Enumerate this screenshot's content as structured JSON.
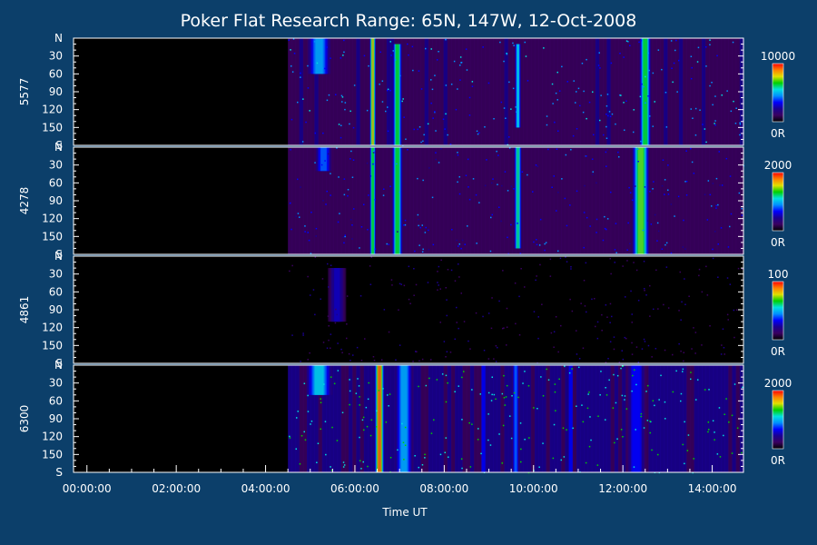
{
  "chart_data": {
    "type": "heatmap",
    "title": "Poker Flat Research Range: 65N, 147W, 12-Oct-2008",
    "xlabel": "Time UT",
    "x_tick_labels": [
      "00:00:00",
      "02:00:00",
      "04:00:00",
      "06:00:00",
      "08:00:00",
      "10:00:00",
      "12:00:00",
      "14:00:00"
    ],
    "x_tick_hours": [
      0,
      2,
      4,
      6,
      8,
      10,
      12,
      14
    ],
    "xlim_hours": [
      -0.3,
      14.7
    ],
    "data_start_hours": 4.5,
    "y_tick_labels": [
      "N",
      "30",
      "60",
      "90",
      "120",
      "150",
      "S"
    ],
    "y_tick_values": [
      0,
      30,
      60,
      90,
      120,
      150,
      180
    ],
    "ylim": [
      0,
      180
    ],
    "colorbar_colors": [
      "#000000",
      "#3a0060",
      "#1a0090",
      "#0000ff",
      "#0090ff",
      "#00e0e0",
      "#00d000",
      "#e0e000",
      "#ff8000",
      "#ff0000"
    ],
    "panels": [
      {
        "name": "5577",
        "cmax": 10000,
        "cmax_label": "10000",
        "cmin_label": "0R",
        "background": 0.13,
        "activity": [
          {
            "t": 5.2,
            "w": 0.45,
            "a": 0.55,
            "y0": 0,
            "y1": 60
          },
          {
            "t": 6.4,
            "w": 0.12,
            "a": 0.9,
            "y0": 0,
            "y1": 180
          },
          {
            "t": 6.95,
            "w": 0.18,
            "a": 0.75,
            "y0": 10,
            "y1": 180
          },
          {
            "t": 9.65,
            "w": 0.12,
            "a": 0.6,
            "y0": 10,
            "y1": 150
          },
          {
            "t": 12.5,
            "w": 0.22,
            "a": 0.75,
            "y0": 0,
            "y1": 180
          }
        ]
      },
      {
        "name": "4278",
        "cmax": 2000,
        "cmax_label": "2000",
        "cmin_label": "0R",
        "background": 0.1,
        "activity": [
          {
            "t": 5.3,
            "w": 0.35,
            "a": 0.45,
            "y0": 0,
            "y1": 40
          },
          {
            "t": 6.4,
            "w": 0.12,
            "a": 0.75,
            "y0": 0,
            "y1": 180
          },
          {
            "t": 6.95,
            "w": 0.2,
            "a": 0.75,
            "y0": 0,
            "y1": 180
          },
          {
            "t": 9.65,
            "w": 0.15,
            "a": 0.65,
            "y0": 0,
            "y1": 170
          },
          {
            "t": 12.4,
            "w": 0.32,
            "a": 0.8,
            "y0": 0,
            "y1": 180
          }
        ]
      },
      {
        "name": "4861",
        "cmax": 100,
        "cmax_label": "100",
        "cmin_label": "0R",
        "background": 0.02,
        "activity": [
          {
            "t": 5.6,
            "w": 0.35,
            "a": 0.3,
            "y0": 20,
            "y1": 110
          }
        ]
      },
      {
        "name": "6300",
        "cmax": 2000,
        "cmax_label": "2000",
        "cmin_label": "0R",
        "background": 0.2,
        "activity": [
          {
            "t": 5.2,
            "w": 0.5,
            "a": 0.6,
            "y0": 0,
            "y1": 50
          },
          {
            "t": 6.55,
            "w": 0.18,
            "a": 1.0,
            "y0": 0,
            "y1": 180
          },
          {
            "t": 7.1,
            "w": 0.35,
            "a": 0.55,
            "y0": 0,
            "y1": 180
          },
          {
            "t": 9.6,
            "w": 0.15,
            "a": 0.45,
            "y0": 0,
            "y1": 180
          },
          {
            "t": 12.3,
            "w": 0.4,
            "a": 0.4,
            "y0": 0,
            "y1": 180
          }
        ]
      }
    ]
  }
}
